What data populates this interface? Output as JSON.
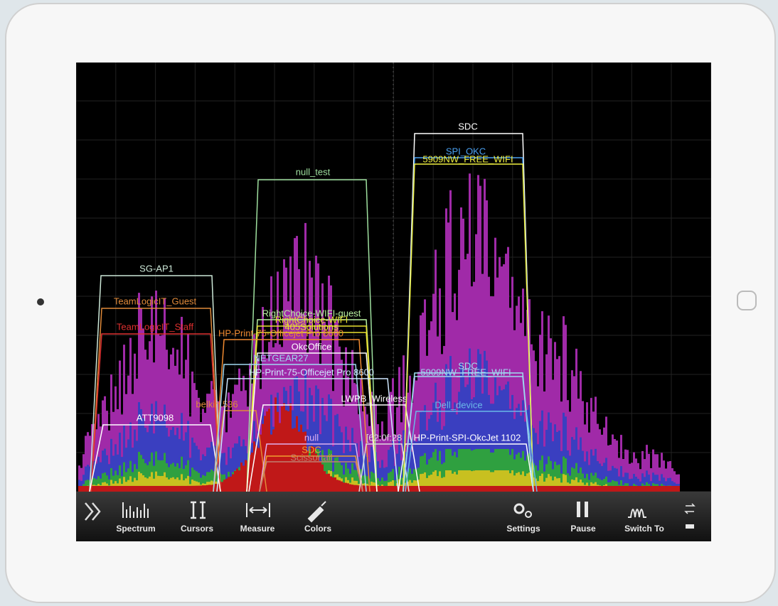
{
  "screen": {
    "networks": [
      {
        "label": "SG-AP1"
      },
      {
        "label": "TeamLogicIT_Guest"
      },
      {
        "label": "TeamLogicIT_Staff"
      },
      {
        "label": "ATT9098"
      },
      {
        "label": "belkin.536"
      },
      {
        "label": "null_test"
      },
      {
        "label": "RightChoice-WIFI-guest"
      },
      {
        "label": "RightChoice-WIFI"
      },
      {
        "label": "405Solutions"
      },
      {
        "label": "HP-Print-75-Officejet Pro 8600"
      },
      {
        "label": "OkcOffice"
      },
      {
        "label": "NETGEAR27"
      },
      {
        "label": "HP-Print-75-Officejet Pro 8600"
      },
      {
        "label": "LWPB_Wireless"
      },
      {
        "label": "null"
      },
      {
        "label": "SDC"
      },
      {
        "label": "Scissortail"
      },
      {
        "label": "[62:0f:28"
      },
      {
        "label": "HP-Print-SPI-OkcJet 1102"
      },
      {
        "label": "SDC"
      },
      {
        "label": "SPI_OKC"
      },
      {
        "label": "5909NW_FREE_WIFI"
      },
      {
        "label": "SDC"
      },
      {
        "label": "5909NW_FREE_WIFI"
      },
      {
        "label": "Dell_device"
      }
    ],
    "toolbar": [
      {
        "label": "Spectrum"
      },
      {
        "label": "Cursors"
      },
      {
        "label": "Measure"
      },
      {
        "label": "Colors"
      },
      {
        "label": "Settings"
      },
      {
        "label": "Pause"
      },
      {
        "label": "Switch To"
      }
    ]
  }
}
